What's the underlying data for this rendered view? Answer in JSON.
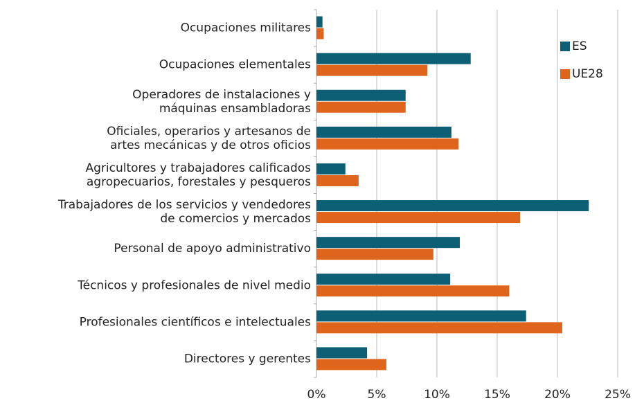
{
  "chart_data": {
    "type": "bar",
    "orientation": "horizontal",
    "categories": [
      [
        "Ocupaciones militares"
      ],
      [
        "Ocupaciones elementales"
      ],
      [
        "Operadores de instalaciones y",
        "máquinas ensambladoras"
      ],
      [
        "Oficiales, operarios y artesanos de",
        "artes mecánicas y de otros oficios"
      ],
      [
        "Agricultores y trabajadores calificados",
        "agropecuarios, forestales y pesqueros"
      ],
      [
        "Trabajadores de los servicios y vendedores",
        "de comercios y mercados"
      ],
      [
        "Personal de apoyo administrativo"
      ],
      [
        "Técnicos y profesionales de nivel medio"
      ],
      [
        "Profesionales científicos e intelectuales"
      ],
      [
        "Directores y gerentes"
      ]
    ],
    "series": [
      {
        "name": "ES",
        "color": "#0d5f75",
        "values": [
          0.5,
          12.8,
          7.4,
          11.2,
          2.4,
          22.6,
          11.9,
          11.1,
          17.4,
          4.2
        ]
      },
      {
        "name": "UE28",
        "color": "#e0651c",
        "values": [
          0.6,
          9.2,
          7.4,
          11.8,
          3.5,
          16.9,
          9.7,
          16.0,
          20.4,
          5.8
        ]
      }
    ],
    "xlim": [
      0,
      25
    ],
    "xticks": [
      {
        "value": 0,
        "label": "0%"
      },
      {
        "value": 5,
        "label": "5%"
      },
      {
        "value": 10,
        "label": "10%"
      },
      {
        "value": 15,
        "label": "15%"
      },
      {
        "value": 20,
        "label": "20%"
      },
      {
        "value": 25,
        "label": "25%"
      }
    ],
    "grid": true,
    "legend": "upper right"
  }
}
